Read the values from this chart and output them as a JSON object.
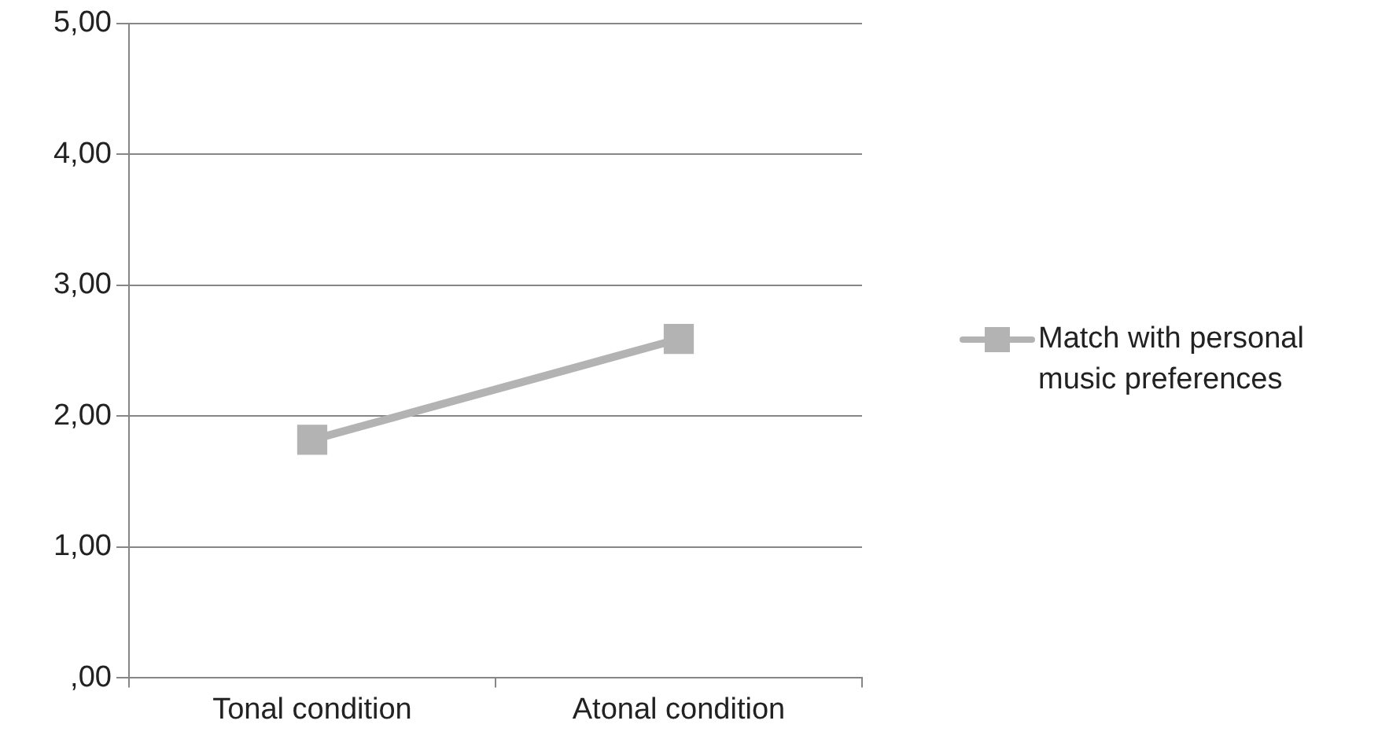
{
  "chart_data": {
    "type": "line",
    "categories": [
      "Tonal condition",
      "Atonal condition"
    ],
    "series": [
      {
        "name": "Match with personal music preferences",
        "color": "#b3b3b3",
        "values": [
          1.82,
          2.59
        ]
      }
    ],
    "ylim": [
      0,
      5
    ],
    "yticks": [
      {
        "value": 0,
        "label": ",00"
      },
      {
        "value": 1,
        "label": "1,00"
      },
      {
        "value": 2,
        "label": "2,00"
      },
      {
        "value": 3,
        "label": "3,00"
      },
      {
        "value": 4,
        "label": "4,00"
      },
      {
        "value": 5,
        "label": "5,00"
      }
    ],
    "grid": "y",
    "legend": "right",
    "marker": "square",
    "line_style": "solid"
  }
}
